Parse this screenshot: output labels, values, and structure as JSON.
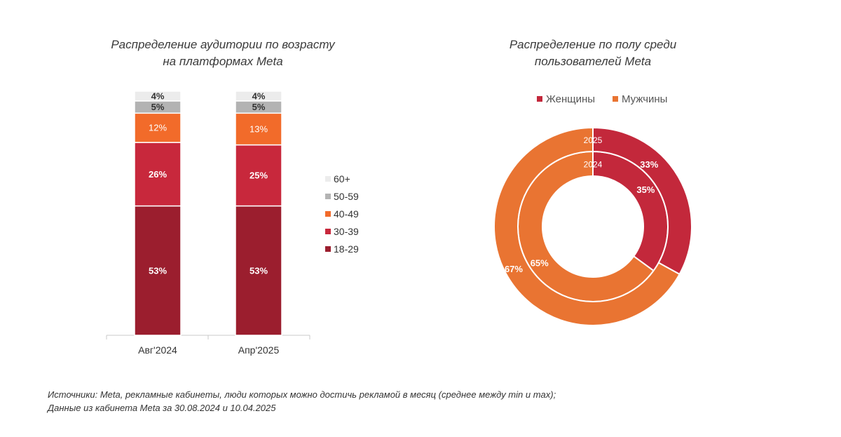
{
  "titles": {
    "left_line1": "Распределение аудитории по возрасту",
    "left_line2": "на платформах Meta",
    "right_line1": "Распределение по полу среди",
    "right_line2": "пользователей Meta"
  },
  "colors": {
    "18-29": "#9b1e2e",
    "30-39": "#c8283c",
    "40-49": "#f26b2a",
    "50-59": "#b3b3b3",
    "60+": "#ececec",
    "women": "#c3283b",
    "men": "#e97432"
  },
  "chart_data": [
    {
      "type": "bar",
      "stacked": true,
      "title": "Распределение аудитории по возрасту на платформах Meta",
      "categories": [
        "Авг'2024",
        "Апр'2025"
      ],
      "series": [
        {
          "name": "18-29",
          "values": [
            53,
            53
          ],
          "labels": [
            "53%",
            "53%"
          ]
        },
        {
          "name": "30-39",
          "values": [
            26,
            25
          ],
          "labels": [
            "26%",
            "25%"
          ]
        },
        {
          "name": "40-49",
          "values": [
            12,
            13
          ],
          "labels": [
            "12%",
            "13%"
          ]
        },
        {
          "name": "50-59",
          "values": [
            5,
            5
          ],
          "labels": [
            "5%",
            "5%"
          ]
        },
        {
          "name": "60+",
          "values": [
            4,
            4
          ],
          "labels": [
            "4%",
            "4%"
          ]
        }
      ],
      "legend_order": [
        "60+",
        "50-59",
        "40-49",
        "30-39",
        "18-29"
      ],
      "legend_position": "right",
      "ylim": [
        0,
        100
      ],
      "grid": false
    },
    {
      "type": "pie",
      "subtype": "donut",
      "title": "Распределение по полу среди пользователей Meta",
      "legend": [
        "Женщины",
        "Мужчины"
      ],
      "legend_position": "top",
      "rings": [
        {
          "name": "2024",
          "values": [
            35,
            65
          ],
          "labels": [
            "35%",
            "65%"
          ]
        },
        {
          "name": "2025",
          "values": [
            33,
            67
          ],
          "labels": [
            "33%",
            "67%"
          ]
        }
      ]
    }
  ],
  "footnote": {
    "line1": "Источники: Meta, рекламные кабинеты, люди которых можно достичь рекламой в месяц (среднее между min и max);",
    "line2": "Данные из кабинета Meta за 30.08.2024 и 10.04.2025"
  }
}
